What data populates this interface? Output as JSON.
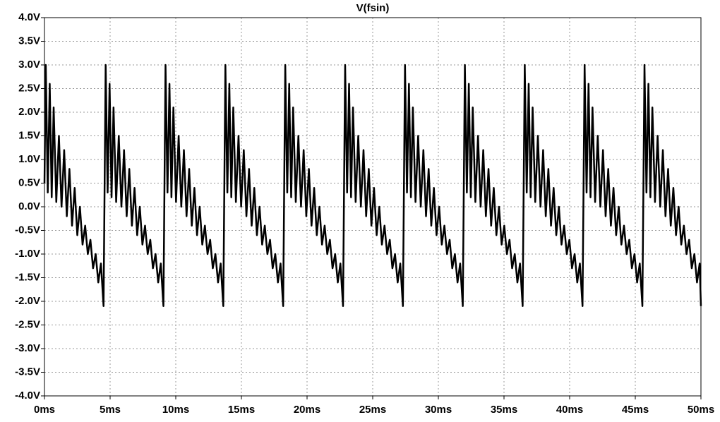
{
  "chart_data": {
    "type": "line",
    "x": [
      0,
      0.1,
      0.25,
      0.4,
      0.55,
      0.7,
      0.9,
      1.1,
      1.3,
      1.5,
      1.7,
      1.9,
      2.1,
      2.3,
      2.5,
      2.7,
      2.9,
      3.1,
      3.3,
      3.5,
      3.7,
      3.9,
      4.1,
      4.3,
      4.5,
      4.66,
      4.81,
      4.96,
      5.11,
      5.26,
      5.46,
      5.66,
      5.86,
      6.06,
      6.26,
      6.46,
      6.66,
      6.86,
      7.06,
      7.26,
      7.46,
      7.66,
      7.86,
      8.06,
      8.26,
      8.46,
      8.66,
      8.86,
      9.06,
      9.22,
      9.37,
      9.52,
      9.67,
      9.82,
      10.02,
      10.22,
      10.42,
      10.62,
      10.82,
      11.02,
      11.22,
      11.42,
      11.62,
      11.82,
      12.02,
      12.22,
      12.42,
      12.62,
      12.82,
      13.02,
      13.22,
      13.42,
      13.62,
      13.78,
      13.93,
      14.08,
      14.23,
      14.38,
      14.58,
      14.78,
      14.98,
      15.18,
      15.38,
      15.58,
      15.78,
      15.98,
      16.18,
      16.38,
      16.58,
      16.78,
      16.98,
      17.18,
      17.38,
      17.58,
      17.78,
      17.98,
      18.18,
      18.34,
      18.49,
      18.64,
      18.79,
      18.94,
      19.14,
      19.34,
      19.54,
      19.74,
      19.94,
      20.14,
      20.34,
      20.54,
      20.74,
      20.94,
      21.14,
      21.34,
      21.54,
      21.74,
      21.94,
      22.14,
      22.34,
      22.54,
      22.74,
      22.9,
      23.05,
      23.2,
      23.35,
      23.5,
      23.7,
      23.9,
      24.1,
      24.3,
      24.5,
      24.7,
      24.9,
      25.1,
      25.3,
      25.5,
      25.7,
      25.9,
      26.1,
      26.3,
      26.5,
      26.7,
      26.9,
      27.1,
      27.3,
      27.46,
      27.61,
      27.76,
      27.91,
      28.06,
      28.26,
      28.46,
      28.66,
      28.86,
      29.06,
      29.26,
      29.46,
      29.66,
      29.86,
      30.06,
      30.26,
      30.46,
      30.66,
      30.86,
      31.06,
      31.26,
      31.46,
      31.66,
      31.86,
      32.02,
      32.17,
      32.32,
      32.47,
      32.62,
      32.82,
      33.02,
      33.22,
      33.42,
      33.62,
      33.82,
      34.02,
      34.22,
      34.42,
      34.62,
      34.82,
      35.02,
      35.22,
      35.42,
      35.62,
      35.82,
      36.02,
      36.22,
      36.42,
      36.58,
      36.73,
      36.88,
      37.03,
      37.18,
      37.38,
      37.58,
      37.78,
      37.98,
      38.18,
      38.38,
      38.58,
      38.78,
      38.98,
      39.18,
      39.38,
      39.58,
      39.78,
      39.98,
      40.18,
      40.38,
      40.58,
      40.78,
      40.98,
      41.14,
      41.29,
      41.44,
      41.59,
      41.74,
      41.94,
      42.14,
      42.34,
      42.54,
      42.74,
      42.94,
      43.14,
      43.34,
      43.54,
      43.74,
      43.94,
      44.14,
      44.34,
      44.54,
      44.74,
      44.94,
      45.14,
      45.34,
      45.54,
      45.7,
      45.85,
      46.0,
      46.15,
      46.3,
      46.5,
      46.7,
      46.9,
      47.1,
      47.3,
      47.5,
      47.7,
      47.9,
      48.1,
      48.3,
      48.5,
      48.7,
      48.9,
      49.1,
      49.3,
      49.5,
      49.7,
      49.9,
      50
    ],
    "series": [
      {
        "name": "V(fsin)",
        "color": "#000000",
        "values": [
          0.5,
          3.0,
          0.3,
          2.6,
          0.2,
          2.1,
          0.1,
          1.5,
          0,
          1.2,
          -0.2,
          0.8,
          -0.4,
          0.4,
          -0.6,
          0,
          -0.8,
          -0.4,
          -1,
          -0.7,
          -1.3,
          -1,
          -1.6,
          -1.2,
          -2.1,
          3.0,
          0.3,
          2.6,
          0.2,
          2.1,
          0.1,
          1.5,
          0,
          1.2,
          -0.2,
          0.8,
          -0.4,
          0.4,
          -0.6,
          0,
          -0.8,
          -0.4,
          -1,
          -0.7,
          -1.3,
          -1,
          -1.6,
          -1.2,
          -2.1,
          3.0,
          0.3,
          2.6,
          0.2,
          2.1,
          0.1,
          1.5,
          0,
          1.2,
          -0.2,
          0.8,
          -0.4,
          0.4,
          -0.6,
          0,
          -0.8,
          -0.4,
          -1,
          -0.7,
          -1.3,
          -1,
          -1.6,
          -1.2,
          -2.1,
          3.0,
          0.3,
          2.6,
          0.2,
          2.1,
          0.1,
          1.5,
          0,
          1.2,
          -0.2,
          0.8,
          -0.4,
          0.4,
          -0.6,
          0,
          -0.8,
          -0.4,
          -1,
          -0.7,
          -1.3,
          -1,
          -1.6,
          -1.2,
          -2.1,
          3.0,
          0.3,
          2.6,
          0.2,
          2.1,
          0.1,
          1.5,
          0,
          1.2,
          -0.2,
          0.8,
          -0.4,
          0.4,
          -0.6,
          0,
          -0.8,
          -0.4,
          -1,
          -0.7,
          -1.3,
          -1,
          -1.6,
          -1.2,
          -2.1,
          3.0,
          0.3,
          2.6,
          0.2,
          2.1,
          0.1,
          1.5,
          0,
          1.2,
          -0.2,
          0.8,
          -0.4,
          0.4,
          -0.6,
          0,
          -0.8,
          -0.4,
          -1,
          -0.7,
          -1.3,
          -1,
          -1.6,
          -1.2,
          -2.1,
          3.0,
          0.3,
          2.6,
          0.2,
          2.1,
          0.1,
          1.5,
          0,
          1.2,
          -0.2,
          0.8,
          -0.4,
          0.4,
          -0.6,
          0,
          -0.8,
          -0.4,
          -1,
          -0.7,
          -1.3,
          -1,
          -1.6,
          -1.2,
          -2.1,
          3.0,
          0.3,
          2.6,
          0.2,
          2.1,
          0.1,
          1.5,
          0,
          1.2,
          -0.2,
          0.8,
          -0.4,
          0.4,
          -0.6,
          0,
          -0.8,
          -0.4,
          -1,
          -0.7,
          -1.3,
          -1,
          -1.6,
          -1.2,
          -2.1,
          3.0,
          0.3,
          2.6,
          0.2,
          2.1,
          0.1,
          1.5,
          0,
          1.2,
          -0.2,
          0.8,
          -0.4,
          0.4,
          -0.6,
          0,
          -0.8,
          -0.4,
          -1,
          -0.7,
          -1.3,
          -1,
          -1.6,
          -1.2,
          -2.1,
          3.0,
          0.3,
          2.6,
          0.2,
          2.1,
          0.1,
          1.5,
          0,
          1.2,
          -0.2,
          0.8,
          -0.4,
          0.4,
          -0.6,
          0,
          -0.8,
          -0.4,
          -1,
          -0.7,
          -1.3,
          -1,
          -1.6,
          -1.2,
          -2.1,
          3.0,
          0.3,
          2.6,
          0.2,
          2.1,
          0.1,
          1.5,
          0,
          1.2,
          -0.2,
          0.8,
          -0.4,
          0.4,
          -0.6,
          0,
          -0.8,
          -0.4,
          -1,
          -0.7,
          -1.3,
          -1,
          -1.6,
          -1.2,
          -2.1
        ]
      }
    ],
    "xlim": [
      0,
      50
    ],
    "xticks": [
      {
        "value": 0,
        "label": "0ms"
      },
      {
        "value": 5,
        "label": "5ms"
      },
      {
        "value": 10,
        "label": "10ms"
      },
      {
        "value": 15,
        "label": "15ms"
      },
      {
        "value": 20,
        "label": "20ms"
      },
      {
        "value": 25,
        "label": "25ms"
      },
      {
        "value": 30,
        "label": "30ms"
      },
      {
        "value": 35,
        "label": "35ms"
      },
      {
        "value": 40,
        "label": "40ms"
      },
      {
        "value": 45,
        "label": "45ms"
      },
      {
        "value": 50,
        "label": "50ms"
      }
    ],
    "ylim": [
      -4,
      4
    ],
    "yticks": [
      {
        "value": -4,
        "label": "-4.0V"
      },
      {
        "value": -3.5,
        "label": "-3.5V"
      },
      {
        "value": -3,
        "label": "-3.0V"
      },
      {
        "value": -2.5,
        "label": "-2.5V"
      },
      {
        "value": -2,
        "label": "-2.0V"
      },
      {
        "value": -1.5,
        "label": "-1.5V"
      },
      {
        "value": -1,
        "label": "-1.0V"
      },
      {
        "value": -0.5,
        "label": "-0.5V"
      },
      {
        "value": 0,
        "label": "0.0V"
      },
      {
        "value": 0.5,
        "label": "0.5V"
      },
      {
        "value": 1,
        "label": "1.0V"
      },
      {
        "value": 1.5,
        "label": "1.5V"
      },
      {
        "value": 2,
        "label": "2.0V"
      },
      {
        "value": 2.5,
        "label": "2.5V"
      },
      {
        "value": 3,
        "label": "3.0V"
      },
      {
        "value": 3.5,
        "label": "3.5V"
      },
      {
        "value": 4,
        "label": "4.0V"
      }
    ],
    "grid": true
  }
}
